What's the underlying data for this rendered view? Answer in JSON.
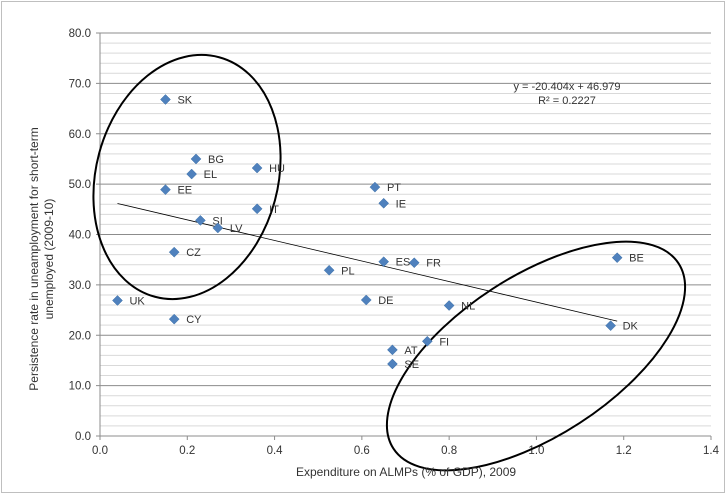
{
  "chart_data": {
    "type": "scatter",
    "title": "",
    "xlabel": "Expenditure on ALMPs (% of GDP), 2009",
    "ylabel_lines": [
      "Persistence rate in uneamployment for short-term",
      "unemployed (2009-10)"
    ],
    "xlim": [
      0,
      1.4
    ],
    "ylim": [
      0,
      80
    ],
    "xticks": [
      "0.0",
      "0.2",
      "0.4",
      "0.6",
      "0.8",
      "1.0",
      "1.2",
      "1.4"
    ],
    "yticks": [
      "0.0",
      "10.0",
      "20.0",
      "30.0",
      "40.0",
      "50.0",
      "60.0",
      "70.0",
      "80.0"
    ],
    "grid": "horizontal",
    "marker_color": "#4f81bd",
    "points": [
      {
        "label": "SK",
        "x": 0.15,
        "y": 66.8
      },
      {
        "label": "BG",
        "x": 0.22,
        "y": 55.0
      },
      {
        "label": "EL",
        "x": 0.21,
        "y": 52.0
      },
      {
        "label": "HU",
        "x": 0.36,
        "y": 53.2
      },
      {
        "label": "EE",
        "x": 0.15,
        "y": 48.9
      },
      {
        "label": "IT",
        "x": 0.36,
        "y": 45.1
      },
      {
        "label": "SI",
        "x": 0.23,
        "y": 42.8
      },
      {
        "label": "LV",
        "x": 0.27,
        "y": 41.3
      },
      {
        "label": "CZ",
        "x": 0.17,
        "y": 36.5
      },
      {
        "label": "UK",
        "x": 0.04,
        "y": 26.9
      },
      {
        "label": "CY",
        "x": 0.17,
        "y": 23.2
      },
      {
        "label": "PT",
        "x": 0.63,
        "y": 49.4
      },
      {
        "label": "IE",
        "x": 0.65,
        "y": 46.2
      },
      {
        "label": "ES",
        "x": 0.65,
        "y": 34.6
      },
      {
        "label": "FR",
        "x": 0.72,
        "y": 34.4
      },
      {
        "label": "PL",
        "x": 0.525,
        "y": 32.9
      },
      {
        "label": "DE",
        "x": 0.61,
        "y": 27.0
      },
      {
        "label": "NL",
        "x": 0.8,
        "y": 25.9
      },
      {
        "label": "FI",
        "x": 0.75,
        "y": 18.8
      },
      {
        "label": "AT",
        "x": 0.67,
        "y": 17.1
      },
      {
        "label": "SE",
        "x": 0.67,
        "y": 14.3
      },
      {
        "label": "BE",
        "x": 1.185,
        "y": 35.4
      },
      {
        "label": "DK",
        "x": 1.17,
        "y": 21.9
      }
    ],
    "trendline": {
      "slope": -20.404,
      "intercept": 46.979,
      "x_range": [
        0.04,
        1.185
      ],
      "equation": "y = -20.404x + 46.979",
      "r_squared": "R² = 0.2227"
    },
    "annotations": [
      "ellipse around low-expenditure high-persistence group",
      "ellipse around high-expenditure low-persistence group"
    ]
  }
}
